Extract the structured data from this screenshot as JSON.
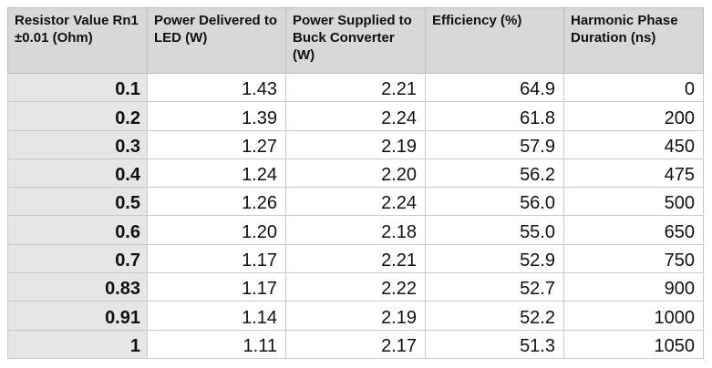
{
  "table": {
    "headers": [
      "Resistor Value Rn1 ±0.01 (Ohm)",
      "Power Delivered to LED (W)",
      "Power Supplied to Buck Converter (W)",
      "Efficiency (%)",
      "Harmonic Phase Duration (ns)"
    ],
    "rows": [
      [
        "0.1",
        "1.43",
        "2.21",
        "64.9",
        "0"
      ],
      [
        "0.2",
        "1.39",
        "2.24",
        "61.8",
        "200"
      ],
      [
        "0.3",
        "1.27",
        "2.19",
        "57.9",
        "450"
      ],
      [
        "0.4",
        "1.24",
        "2.20",
        "56.2",
        "475"
      ],
      [
        "0.5",
        "1.26",
        "2.24",
        "56.0",
        "500"
      ],
      [
        "0.6",
        "1.20",
        "2.18",
        "55.0",
        "650"
      ],
      [
        "0.7",
        "1.17",
        "2.21",
        "52.9",
        "750"
      ],
      [
        "0.83",
        "1.17",
        "2.22",
        "52.7",
        "900"
      ],
      [
        "0.91",
        "1.14",
        "2.19",
        "52.2",
        "1000"
      ],
      [
        "1",
        "1.11",
        "2.17",
        "51.3",
        "1050"
      ]
    ]
  }
}
